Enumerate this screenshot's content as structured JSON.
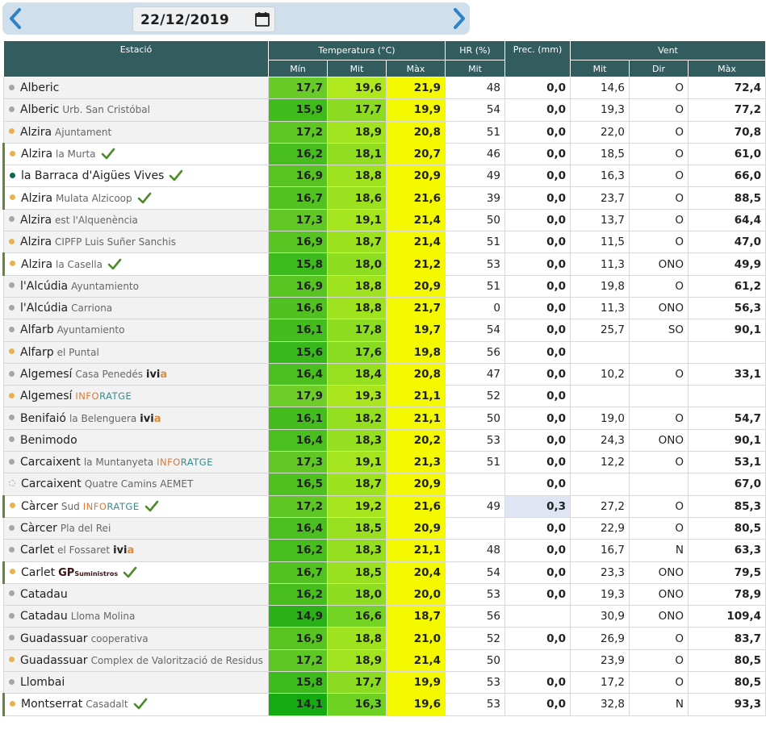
{
  "date": "22/12/2019",
  "icons": {
    "prev": "chevron-left-icon",
    "next": "chevron-right-icon",
    "calendar": "calendar-icon",
    "check": "check-icon"
  },
  "colors": {
    "header": "#325c5e",
    "max_temp": "#f4f900",
    "check": "#4d8a2a"
  },
  "headers": {
    "station": "Estació",
    "temperature": "Temperatura (°C)",
    "hr": "HR (%)",
    "prec": "Prec. (mm)",
    "wind": "Vent",
    "min": "Mín",
    "mit": "Mit",
    "max": "Màx",
    "hr_mit": "Mit",
    "wind_mit": "Mit",
    "wind_dir": "Dir",
    "wind_max": "Màx"
  },
  "rows": [
    {
      "name": "Alberic",
      "sub": "",
      "dot": "gray",
      "tag": "",
      "check": false,
      "min": "17,7",
      "mit": "19,6",
      "max": "21,9",
      "hr": "48",
      "prec": "0,0",
      "wmit": "14,6",
      "wdir": "O",
      "wmax": "72,4"
    },
    {
      "name": "Alberic",
      "sub": "Urb. San Cristóbal",
      "dot": "gray",
      "tag": "",
      "check": false,
      "min": "15,9",
      "mit": "17,7",
      "max": "19,9",
      "hr": "54",
      "prec": "0,0",
      "wmit": "19,3",
      "wdir": "O",
      "wmax": "77,2"
    },
    {
      "name": "Alzira",
      "sub": "Ajuntament",
      "dot": "orange",
      "tag": "",
      "check": false,
      "min": "17,2",
      "mit": "18,9",
      "max": "20,8",
      "hr": "51",
      "prec": "0,0",
      "wmit": "22,0",
      "wdir": "O",
      "wmax": "70,8"
    },
    {
      "name": "Alzira",
      "sub": "la Murta",
      "dot": "orange",
      "tag": "",
      "check": true,
      "min": "16,2",
      "mit": "18,1",
      "max": "20,7",
      "hr": "46",
      "prec": "0,0",
      "wmit": "18,5",
      "wdir": "O",
      "wmax": "61,0"
    },
    {
      "name": "la Barraca d'Aigües Vives",
      "sub": "",
      "dot": "teal",
      "tag": "",
      "check": true,
      "min": "16,9",
      "mit": "18,8",
      "max": "20,9",
      "hr": "49",
      "prec": "0,0",
      "wmit": "16,3",
      "wdir": "O",
      "wmax": "66,0"
    },
    {
      "name": "Alzira",
      "sub": "Mulata Alzicoop",
      "dot": "orange",
      "tag": "",
      "check": true,
      "min": "16,7",
      "mit": "18,6",
      "max": "21,6",
      "hr": "39",
      "prec": "0,0",
      "wmit": "23,7",
      "wdir": "O",
      "wmax": "88,5"
    },
    {
      "name": "Alzira",
      "sub": "est l'Alquenència",
      "dot": "gray",
      "tag": "",
      "check": false,
      "min": "17,3",
      "mit": "19,1",
      "max": "21,4",
      "hr": "50",
      "prec": "0,0",
      "wmit": "13,7",
      "wdir": "O",
      "wmax": "64,4"
    },
    {
      "name": "Alzira",
      "sub": "CIPFP Luis Suñer Sanchis",
      "dot": "orange",
      "tag": "",
      "check": false,
      "min": "16,9",
      "mit": "18,7",
      "max": "21,4",
      "hr": "51",
      "prec": "0,0",
      "wmit": "11,5",
      "wdir": "O",
      "wmax": "47,0"
    },
    {
      "name": "Alzira",
      "sub": "la Casella",
      "dot": "orange",
      "tag": "",
      "check": true,
      "min": "15,8",
      "mit": "18,0",
      "max": "21,2",
      "hr": "53",
      "prec": "0,0",
      "wmit": "11,3",
      "wdir": "ONO",
      "wmax": "49,9"
    },
    {
      "name": "l'Alcúdia",
      "sub": "Ayuntamiento",
      "dot": "gray",
      "tag": "",
      "check": false,
      "min": "16,9",
      "mit": "18,8",
      "max": "20,9",
      "hr": "51",
      "prec": "0,0",
      "wmit": "19,8",
      "wdir": "O",
      "wmax": "61,2"
    },
    {
      "name": "l'Alcúdia",
      "sub": "Carriona",
      "dot": "gray",
      "tag": "",
      "check": false,
      "min": "16,6",
      "mit": "18,8",
      "max": "21,7",
      "hr": "0",
      "prec": "0,0",
      "wmit": "11,3",
      "wdir": "ONO",
      "wmax": "56,3"
    },
    {
      "name": "Alfarb",
      "sub": "Ayuntamiento",
      "dot": "gray",
      "tag": "",
      "check": false,
      "min": "16,1",
      "mit": "17,8",
      "max": "19,7",
      "hr": "54",
      "prec": "0,0",
      "wmit": "25,7",
      "wdir": "SO",
      "wmax": "90,1"
    },
    {
      "name": "Alfarp",
      "sub": "el Puntal",
      "dot": "orange",
      "tag": "",
      "check": false,
      "min": "15,6",
      "mit": "17,6",
      "max": "19,8",
      "hr": "56",
      "prec": "0,0",
      "wmit": "",
      "wdir": "",
      "wmax": ""
    },
    {
      "name": "Algemesí",
      "sub": "Casa Penedés",
      "dot": "gray",
      "tag": "ivia",
      "check": false,
      "min": "16,4",
      "mit": "18,4",
      "max": "20,8",
      "hr": "47",
      "prec": "0,0",
      "wmit": "10,2",
      "wdir": "O",
      "wmax": "33,1"
    },
    {
      "name": "Algemesí",
      "sub": "",
      "dot": "orange",
      "tag": "inforatge",
      "check": false,
      "min": "17,9",
      "mit": "19,3",
      "max": "21,1",
      "hr": "52",
      "prec": "0,0",
      "wmit": "",
      "wdir": "",
      "wmax": ""
    },
    {
      "name": "Benifaió",
      "sub": "la Belenguera",
      "dot": "gray",
      "tag": "ivia",
      "check": false,
      "min": "16,1",
      "mit": "18,2",
      "max": "21,1",
      "hr": "50",
      "prec": "0,0",
      "wmit": "19,0",
      "wdir": "O",
      "wmax": "54,7"
    },
    {
      "name": "Benimodo",
      "sub": "",
      "dot": "gray",
      "tag": "",
      "check": false,
      "min": "16,4",
      "mit": "18,3",
      "max": "20,2",
      "hr": "53",
      "prec": "0,0",
      "wmit": "24,3",
      "wdir": "ONO",
      "wmax": "90,1"
    },
    {
      "name": "Carcaixent",
      "sub": "la Muntanyeta",
      "dot": "gray",
      "tag": "inforatge",
      "check": false,
      "min": "17,3",
      "mit": "19,1",
      "max": "21,3",
      "hr": "51",
      "prec": "0,0",
      "wmit": "12,2",
      "wdir": "O",
      "wmax": "53,1"
    },
    {
      "name": "Carcaixent",
      "sub": "Quatre Camins AEMET",
      "dot": "empty",
      "tag": "",
      "check": false,
      "min": "16,5",
      "mit": "18,7",
      "max": "20,9",
      "hr": "",
      "prec": "0,0",
      "wmit": "",
      "wdir": "",
      "wmax": "67,0"
    },
    {
      "name": "Càrcer",
      "sub": "Sud",
      "dot": "orange",
      "tag": "inforatge",
      "check": true,
      "min": "17,2",
      "mit": "19,2",
      "max": "21,6",
      "hr": "49",
      "prec": "0,3",
      "wmit": "27,2",
      "wdir": "O",
      "wmax": "85,3"
    },
    {
      "name": "Càrcer",
      "sub": "Pla del Rei",
      "dot": "gray",
      "tag": "",
      "check": false,
      "min": "16,4",
      "mit": "18,5",
      "max": "20,9",
      "hr": "",
      "prec": "0,0",
      "wmit": "22,9",
      "wdir": "O",
      "wmax": "80,5"
    },
    {
      "name": "Carlet",
      "sub": "el Fossaret",
      "dot": "gray",
      "tag": "ivia",
      "check": false,
      "min": "16,2",
      "mit": "18,3",
      "max": "21,1",
      "hr": "48",
      "prec": "0,0",
      "wmit": "16,7",
      "wdir": "N",
      "wmax": "63,3"
    },
    {
      "name": "Carlet",
      "sub": "",
      "dot": "orange",
      "tag": "gp",
      "check": true,
      "min": "16,7",
      "mit": "18,5",
      "max": "20,4",
      "hr": "54",
      "prec": "0,0",
      "wmit": "23,3",
      "wdir": "ONO",
      "wmax": "79,5"
    },
    {
      "name": "Catadau",
      "sub": "",
      "dot": "gray",
      "tag": "",
      "check": false,
      "min": "16,2",
      "mit": "18,0",
      "max": "20,0",
      "hr": "53",
      "prec": "0,0",
      "wmit": "19,3",
      "wdir": "ONO",
      "wmax": "78,9"
    },
    {
      "name": "Catadau",
      "sub": "Lloma Molina",
      "dot": "gray",
      "tag": "",
      "check": false,
      "min": "14,9",
      "mit": "16,6",
      "max": "18,7",
      "hr": "56",
      "prec": "",
      "wmit": "30,9",
      "wdir": "ONO",
      "wmax": "109,4"
    },
    {
      "name": "Guadassuar",
      "sub": "cooperativa",
      "dot": "gray",
      "tag": "",
      "check": false,
      "min": "16,9",
      "mit": "18,8",
      "max": "21,0",
      "hr": "52",
      "prec": "0,0",
      "wmit": "26,9",
      "wdir": "O",
      "wmax": "83,7"
    },
    {
      "name": "Guadassuar",
      "sub": "Complex de Valorització de Residus",
      "dot": "orange",
      "tag": "",
      "check": false,
      "min": "17,2",
      "mit": "18,9",
      "max": "21,4",
      "hr": "50",
      "prec": "",
      "wmit": "23,9",
      "wdir": "O",
      "wmax": "80,5"
    },
    {
      "name": "Llombai",
      "sub": "",
      "dot": "gray",
      "tag": "",
      "check": false,
      "min": "15,8",
      "mit": "17,7",
      "max": "19,9",
      "hr": "53",
      "prec": "0,0",
      "wmit": "17,2",
      "wdir": "O",
      "wmax": "80,5"
    },
    {
      "name": "Montserrat",
      "sub": "Casadalt",
      "dot": "orange",
      "tag": "",
      "check": true,
      "min": "14,1",
      "mit": "16,3",
      "max": "19,6",
      "hr": "53",
      "prec": "0,0",
      "wmit": "32,8",
      "wdir": "N",
      "wmax": "93,3"
    }
  ]
}
